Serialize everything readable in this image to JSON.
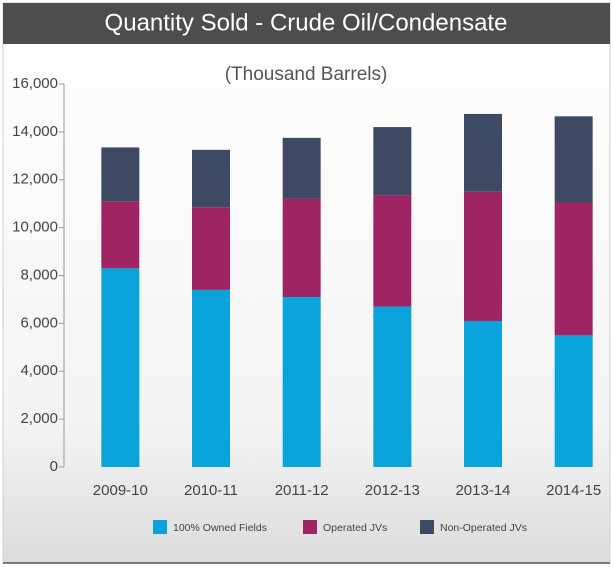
{
  "chart_data": {
    "type": "stacked_bar",
    "title": "Quantity Sold - Crude Oil/Condensate",
    "subtitle": "(Thousand Barrels)",
    "categories": [
      "2009-10",
      "2010-11",
      "2011-12",
      "2012-13",
      "2013-14",
      "2014-15"
    ],
    "series": [
      {
        "name": "100% Owned Fields",
        "color": "#0aa3dc",
        "values": [
          8300,
          7400,
          7100,
          6700,
          6100,
          5500
        ]
      },
      {
        "name": "Operated JVs",
        "color": "#9e2462",
        "values": [
          2800,
          3450,
          4100,
          4650,
          5400,
          5550
        ]
      },
      {
        "name": "Non-Operated JVs",
        "color": "#3e4a63",
        "values": [
          2250,
          2400,
          2550,
          2850,
          3250,
          3600
        ]
      }
    ],
    "ylim": [
      0,
      16000
    ],
    "yticks": [
      0,
      {
        "value": 2000,
        "label": "2,000"
      },
      {
        "value": 4000,
        "label": "4,000"
      },
      {
        "value": 6000,
        "label": "6,000"
      },
      {
        "value": 8000,
        "label": "8,000"
      },
      {
        "value": 10000,
        "label": "10,000"
      },
      {
        "value": 12000,
        "label": "12,000"
      },
      {
        "value": 14000,
        "label": "14,000"
      },
      {
        "value": 16000,
        "label": "16,000"
      }
    ],
    "legend": "bottom"
  }
}
